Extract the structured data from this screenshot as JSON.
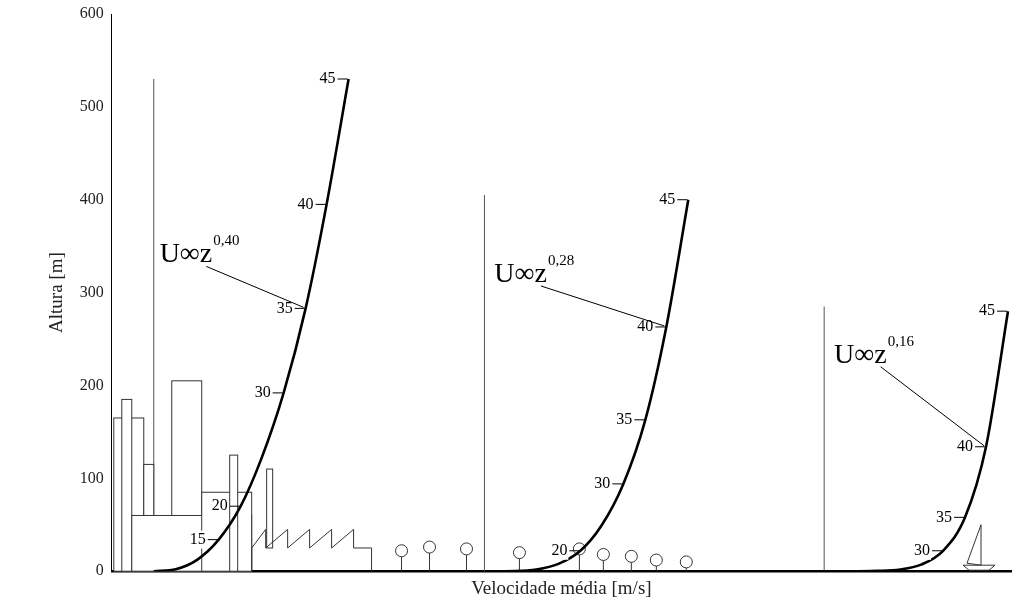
{
  "chart_data": {
    "type": "line",
    "x_label": "Velocidade média [m/s]",
    "y_label": "Altura [m]",
    "xlim": [
      0,
      900
    ],
    "ylim": [
      0,
      600
    ],
    "yticks": [
      0,
      100,
      200,
      300,
      400,
      500,
      600
    ],
    "grid": false,
    "tick_labels": "y",
    "series": [
      {
        "label": "U∞z",
        "exponent": "0,40",
        "color": "#000000",
        "marker": "none",
        "line_style": "solid",
        "x": [
          42,
          64,
          85,
          107,
          129,
          150,
          172,
          194,
          215,
          237
        ],
        "y": [
          0,
          2.2,
          12,
          34,
          70,
          122,
          192,
          283,
          395,
          530
        ],
        "marks": [
          {
            "speed": 15,
            "x": 107,
            "y": 34
          },
          {
            "speed": 20,
            "x": 129,
            "y": 70
          },
          {
            "speed": 30,
            "x": 172,
            "y": 192
          },
          {
            "speed": 35,
            "x": 194,
            "y": 283
          },
          {
            "speed": 40,
            "x": 215,
            "y": 395
          },
          {
            "speed": 45,
            "x": 237,
            "y": 530
          }
        ],
        "gradient_height": {
          "x": 42,
          "height": 530
        }
      },
      {
        "label": "U∞z",
        "exponent": "0,28",
        "color": "#000000",
        "marker": "none",
        "line_style": "solid",
        "x": [
          382,
          404,
          425,
          447,
          469,
          490,
          512,
          534,
          555,
          577
        ],
        "y": [
          0,
          0.2,
          1.9,
          7.9,
          22,
          49,
          94,
          163,
          263,
          400
        ],
        "marks": [
          {
            "speed": 20,
            "x": 469,
            "y": 22
          },
          {
            "speed": 30,
            "x": 512,
            "y": 94
          },
          {
            "speed": 35,
            "x": 534,
            "y": 163
          },
          {
            "speed": 40,
            "x": 555,
            "y": 263
          },
          {
            "speed": 45,
            "x": 577,
            "y": 400
          }
        ],
        "gradient_height": {
          "x": 373,
          "height": 405
        }
      },
      {
        "label": "U∞z",
        "exponent": "0,16",
        "color": "#000000",
        "marker": "none",
        "line_style": "solid",
        "x": [
          702,
          724,
          745,
          767,
          789,
          810,
          832,
          854,
          875,
          897
        ],
        "y": [
          0,
          0,
          0.02,
          0.3,
          1.8,
          7.1,
          22,
          58,
          134,
          280
        ],
        "marks": [
          {
            "speed": 30,
            "x": 832,
            "y": 22
          },
          {
            "speed": 35,
            "x": 854,
            "y": 58
          },
          {
            "speed": 40,
            "x": 875,
            "y": 134
          },
          {
            "speed": 45,
            "x": 897,
            "y": 280
          }
        ],
        "gradient_height": {
          "x": 713,
          "height": 285
        }
      }
    ]
  }
}
